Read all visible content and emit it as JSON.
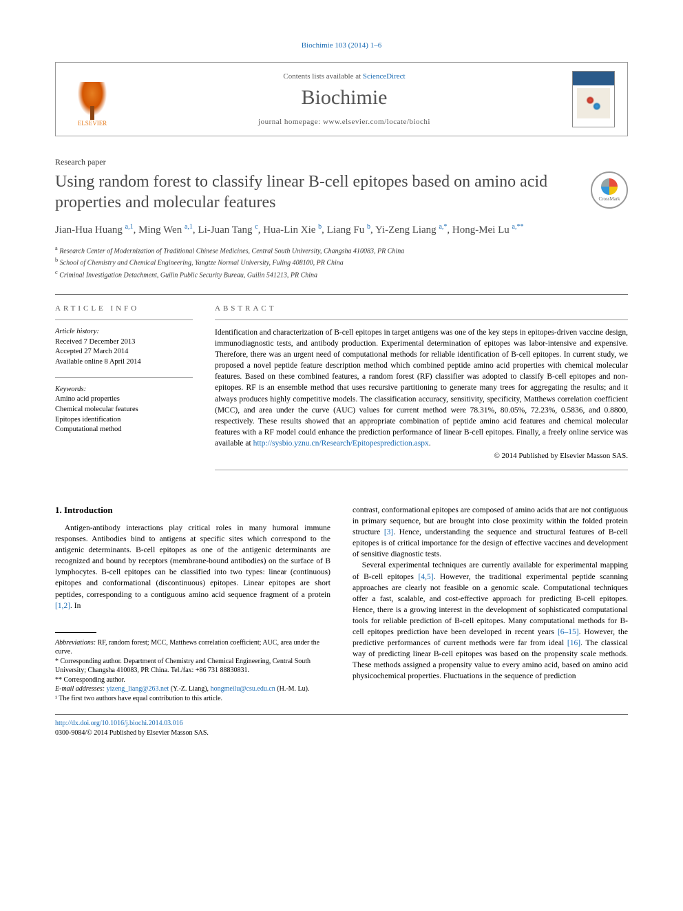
{
  "citation": "Biochimie 103 (2014) 1–6",
  "header": {
    "contents_prefix": "Contents lists available at ",
    "contents_link": "ScienceDirect",
    "journal_name": "Biochimie",
    "homepage_prefix": "journal homepage: ",
    "homepage_url": "www.elsevier.com/locate/biochi",
    "publisher": "ELSEVIER",
    "cover_label": "BIOCHIMIE"
  },
  "paper_type": "Research paper",
  "title": "Using random forest to classify linear B-cell epitopes based on amino acid properties and molecular features",
  "crossmark_label": "CrossMark",
  "authors_html": "Jian-Hua Huang <sup>a,1</sup>, Ming Wen <sup>a,1</sup>, Li-Juan Tang <sup>c</sup>, Hua-Lin Xie <sup>b</sup>, Liang Fu <sup>b</sup>, Yi-Zeng Liang <sup>a,*</sup>, Hong-Mei Lu <sup>a,**</sup>",
  "affiliations": [
    "a Research Center of Modernization of Traditional Chinese Medicines, Central South University, Changsha 410083, PR China",
    "b School of Chemistry and Chemical Engineering, Yangtze Normal University, Fuling 408100, PR China",
    "c Criminal Investigation Detachment, Guilin Public Security Bureau, Guilin 541213, PR China"
  ],
  "article_info": {
    "header": "ARTICLE INFO",
    "history_label": "Article history:",
    "history": [
      "Received 7 December 2013",
      "Accepted 27 March 2014",
      "Available online 8 April 2014"
    ],
    "keywords_label": "Keywords:",
    "keywords": [
      "Amino acid properties",
      "Chemical molecular features",
      "Epitopes identification",
      "Computational method"
    ]
  },
  "abstract": {
    "header": "ABSTRACT",
    "text": "Identification and characterization of B-cell epitopes in target antigens was one of the key steps in epitopes-driven vaccine design, immunodiagnostic tests, and antibody production. Experimental determination of epitopes was labor-intensive and expensive. Therefore, there was an urgent need of computational methods for reliable identification of B-cell epitopes. In current study, we proposed a novel peptide feature description method which combined peptide amino acid properties with chemical molecular features. Based on these combined features, a random forest (RF) classifier was adopted to classify B-cell epitopes and non-epitopes. RF is an ensemble method that uses recursive partitioning to generate many trees for aggregating the results; and it always produces highly competitive models. The classification accuracy, sensitivity, specificity, Matthews correlation coefficient (MCC), and area under the curve (AUC) values for current method were 78.31%, 80.05%, 72.23%, 0.5836, and 0.8800, respectively. These results showed that an appropriate combination of peptide amino acid features and chemical molecular features with a RF model could enhance the prediction performance of linear B-cell epitopes. Finally, a freely online service was available at ",
    "link": "http://sysbio.yznu.cn/Research/Epitopesprediction.aspx",
    "copyright": "© 2014 Published by Elsevier Masson SAS."
  },
  "intro": {
    "heading": "1. Introduction",
    "col1_p1": "Antigen-antibody interactions play critical roles in many humoral immune responses. Antibodies bind to antigens at specific sites which correspond to the antigenic determinants. B-cell epitopes as one of the antigenic determinants are recognized and bound by receptors (membrane-bound antibodies) on the surface of B lymphocytes. B-cell epitopes can be classified into two types: linear (continuous) epitopes and conformational (discontinuous) epitopes. Linear epitopes are short peptides, corresponding to a contiguous amino acid sequence fragment of a protein ",
    "col1_ref1": "[1,2]",
    "col1_p1_end": ". In",
    "col2_p1_start": "contrast, conformational epitopes are composed of amino acids that are not contiguous in primary sequence, but are brought into close proximity within the folded protein structure ",
    "col2_ref1": "[3]",
    "col2_p1_mid": ". Hence, understanding the sequence and structural features of B-cell epitopes is of critical importance for the design of effective vaccines and development of sensitive diagnostic tests.",
    "col2_p2_start": "Several experimental techniques are currently available for experimental mapping of B-cell epitopes ",
    "col2_ref2": "[4,5]",
    "col2_p2_mid": ". However, the traditional experimental peptide scanning approaches are clearly not feasible on a genomic scale. Computational techniques offer a fast, scalable, and cost-effective approach for predicting B-cell epitopes. Hence, there is a growing interest in the development of sophisticated computational tools for reliable prediction of B-cell epitopes. Many computational methods for B-cell epitopes prediction have been developed in recent years ",
    "col2_ref3": "[6–15]",
    "col2_p2_mid2": ". However, the predictive performances of current methods were far from ideal ",
    "col2_ref4": "[16]",
    "col2_p2_end": ". The classical way of predicting linear B-cell epitopes was based on the propensity scale methods. These methods assigned a propensity value to every amino acid, based on amino acid physicochemical properties. Fluctuations in the sequence of prediction"
  },
  "footnotes": {
    "abbrev_label": "Abbreviations:",
    "abbrev_text": " RF, random forest; MCC, Matthews correlation coefficient; AUC, area under the curve.",
    "corr1": "* Corresponding author. Department of Chemistry and Chemical Engineering, Central South University; Changsha 410083, PR China. Tel./fax: +86 731 88830831.",
    "corr2": "** Corresponding author.",
    "email_label": "E-mail addresses:",
    "email1": "yizeng_liang@263.net",
    "email1_name": " (Y.-Z. Liang), ",
    "email2": "hongmeilu@csu.edu.cn",
    "email2_name": " (H.-M. Lu).",
    "note1": "¹ The first two authors have equal contribution to this article."
  },
  "bottom": {
    "doi": "http://dx.doi.org/10.1016/j.biochi.2014.03.016",
    "issn_copyright": "0300-9084/© 2014 Published by Elsevier Masson SAS."
  },
  "colors": {
    "link": "#1a6bb3",
    "title_gray": "#4a4a4a",
    "border": "#666"
  }
}
